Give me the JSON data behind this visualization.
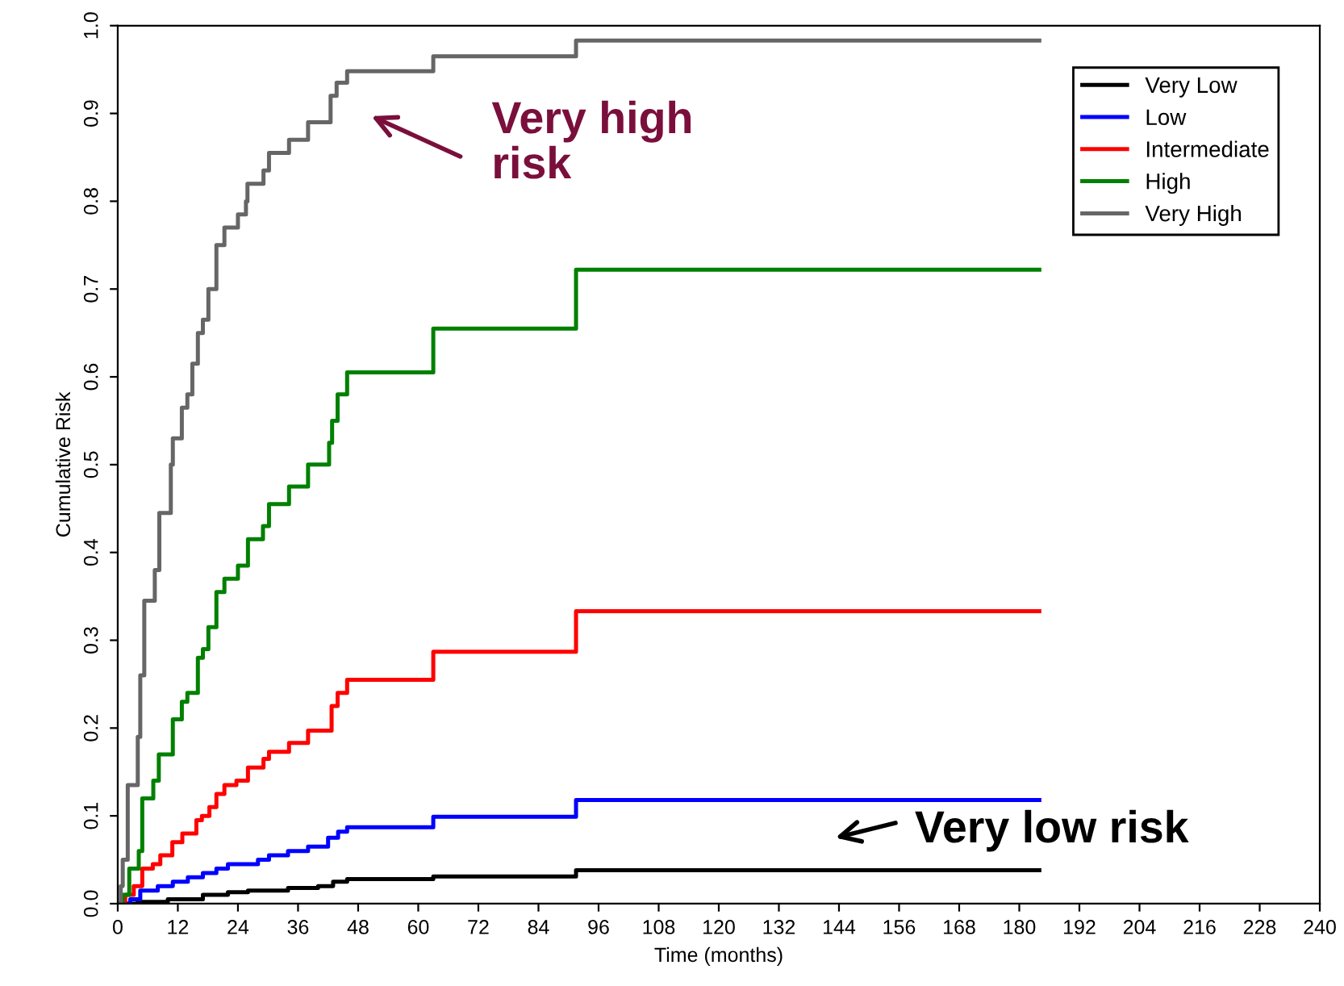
{
  "chart_data": {
    "type": "step",
    "xlabel": "Time (months)",
    "ylabel": "Cumulative Risk",
    "xlim": [
      0,
      240
    ],
    "xticks": [
      0,
      12,
      24,
      36,
      48,
      60,
      72,
      84,
      96,
      108,
      120,
      132,
      144,
      156,
      168,
      180,
      192,
      204,
      216,
      228,
      240
    ],
    "ylim": [
      0,
      1
    ],
    "yticks": [
      {
        "value": 0,
        "label": "0.0"
      },
      0.1,
      0.2,
      0.3,
      0.4,
      0.5,
      0.6,
      0.7,
      0.8,
      0.9,
      {
        "value": 1,
        "label": "1.0"
      }
    ],
    "grid": false,
    "legend": "top right",
    "line_style": "solid",
    "marker": "none",
    "series": [
      {
        "name": "Very Low",
        "color": "#000000",
        "x": [
          0,
          4,
          10,
          17,
          22,
          26,
          34,
          40,
          43,
          45.8,
          63,
          91.5,
          184
        ],
        "values": [
          0,
          0.002,
          0.005,
          0.01,
          0.013,
          0.015,
          0.018,
          0.02,
          0.025,
          0.028,
          0.031,
          0.038,
          0.038
        ]
      },
      {
        "name": "Low",
        "color": "#0000ff",
        "x": [
          0,
          2.5,
          4.5,
          8,
          11,
          14,
          17,
          19.7,
          22,
          28,
          30.2,
          34,
          38,
          42,
          44,
          45.8,
          63,
          91.5,
          184
        ],
        "values": [
          0,
          0.005,
          0.015,
          0.02,
          0.025,
          0.03,
          0.035,
          0.04,
          0.045,
          0.05,
          0.055,
          0.06,
          0.065,
          0.075,
          0.082,
          0.087,
          0.099,
          0.118,
          0.118
        ]
      },
      {
        "name": "Intermediate",
        "color": "#ff0000",
        "x": [
          0,
          1.5,
          3.2,
          4.9,
          7,
          8.5,
          10.9,
          12.9,
          15.7,
          16.8,
          18.3,
          19.7,
          21.3,
          23.7,
          26,
          29.1,
          30.2,
          34.2,
          38,
          42.7,
          43.9,
          45.8,
          63,
          91.5,
          184
        ],
        "values": [
          0,
          0.01,
          0.02,
          0.04,
          0.045,
          0.055,
          0.07,
          0.08,
          0.095,
          0.1,
          0.11,
          0.125,
          0.135,
          0.14,
          0.155,
          0.165,
          0.173,
          0.183,
          0.197,
          0.225,
          0.24,
          0.255,
          0.287,
          0.333,
          0.333
        ]
      },
      {
        "name": "High",
        "color": "#008000",
        "x": [
          0,
          1,
          2.3,
          4.2,
          4.9,
          7.1,
          8.2,
          11,
          12.8,
          13.9,
          16,
          17,
          18.1,
          19.7,
          21.3,
          24,
          26,
          29,
          30.2,
          34.2,
          38,
          42.2,
          42.8,
          43.9,
          45.8,
          63,
          91.5,
          184
        ],
        "values": [
          0,
          0.01,
          0.04,
          0.06,
          0.12,
          0.14,
          0.17,
          0.21,
          0.23,
          0.24,
          0.28,
          0.29,
          0.315,
          0.355,
          0.37,
          0.385,
          0.415,
          0.43,
          0.455,
          0.475,
          0.5,
          0.525,
          0.55,
          0.58,
          0.605,
          0.655,
          0.722,
          0.722
        ]
      },
      {
        "name": "Very High",
        "color": "#666666",
        "x": [
          0,
          0.6,
          1,
          2,
          4,
          4.5,
          5.3,
          7.4,
          8.3,
          10.6,
          11,
          12.8,
          13.9,
          14.9,
          16,
          17,
          18.1,
          19.7,
          21.3,
          24,
          25.6,
          25.9,
          29.1,
          30.2,
          34.2,
          38,
          42.5,
          43.7,
          45.8,
          63,
          91.5,
          184
        ],
        "values": [
          0,
          0.02,
          0.05,
          0.135,
          0.19,
          0.26,
          0.345,
          0.38,
          0.445,
          0.5,
          0.53,
          0.565,
          0.58,
          0.615,
          0.65,
          0.665,
          0.7,
          0.75,
          0.77,
          0.785,
          0.8,
          0.82,
          0.835,
          0.855,
          0.87,
          0.89,
          0.92,
          0.935,
          0.948,
          0.965,
          0.983,
          0.983
        ]
      }
    ],
    "annotations": [
      "Very high\nrisk",
      "Very low risk"
    ]
  }
}
